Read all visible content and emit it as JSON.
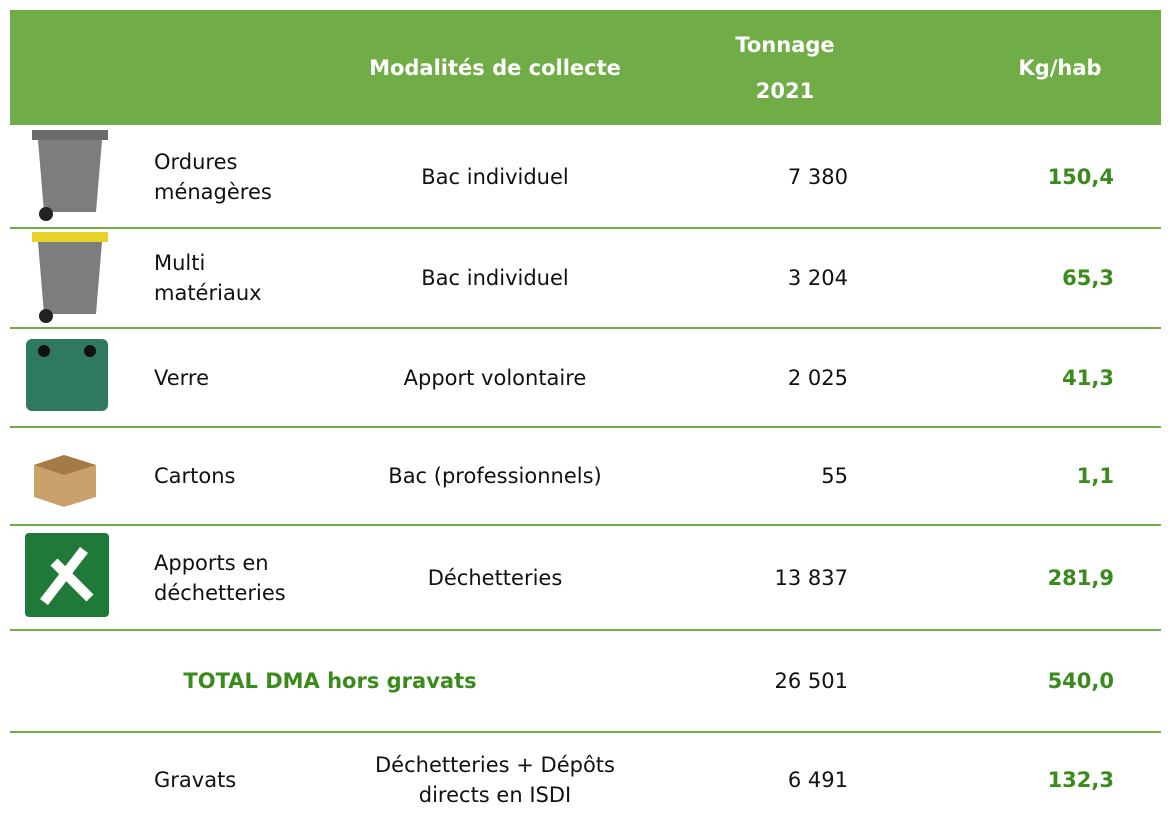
{
  "table": {
    "header": {
      "modalites": "Modalités de collecte",
      "tonnage": [
        "Tonnage",
        "2021"
      ],
      "kg": "Kg/hab"
    },
    "rows": [
      {
        "name": [
          "Ordures",
          "ménagères"
        ],
        "modalite": [
          "Bac individuel"
        ],
        "tonnage": "7 380",
        "kg": "150,4"
      },
      {
        "name": [
          "Multi",
          "matériaux"
        ],
        "modalite": [
          "Bac individuel"
        ],
        "tonnage": "3 204",
        "kg": "65,3"
      },
      {
        "name": [
          "Verre"
        ],
        "modalite": [
          "Apport volontaire"
        ],
        "tonnage": "2 025",
        "kg": "41,3"
      },
      {
        "name": [
          "Cartons"
        ],
        "modalite": [
          "Bac (professionnels)"
        ],
        "tonnage": "55",
        "kg": "1,1"
      },
      {
        "name": [
          "Apports en",
          "déchetteries"
        ],
        "modalite": [
          "Déchetteries"
        ],
        "tonnage": "13 837",
        "kg": "281,9"
      }
    ],
    "total": {
      "label": "TOTAL DMA hors gravats",
      "tonnage": "26 501",
      "kg": "540,0"
    },
    "gravats": {
      "name": [
        "Gravats"
      ],
      "modalite": [
        "Déchetteries + Dépôts",
        "directs en ISDI"
      ],
      "tonnage": "6 491",
      "kg": "132,3"
    }
  }
}
